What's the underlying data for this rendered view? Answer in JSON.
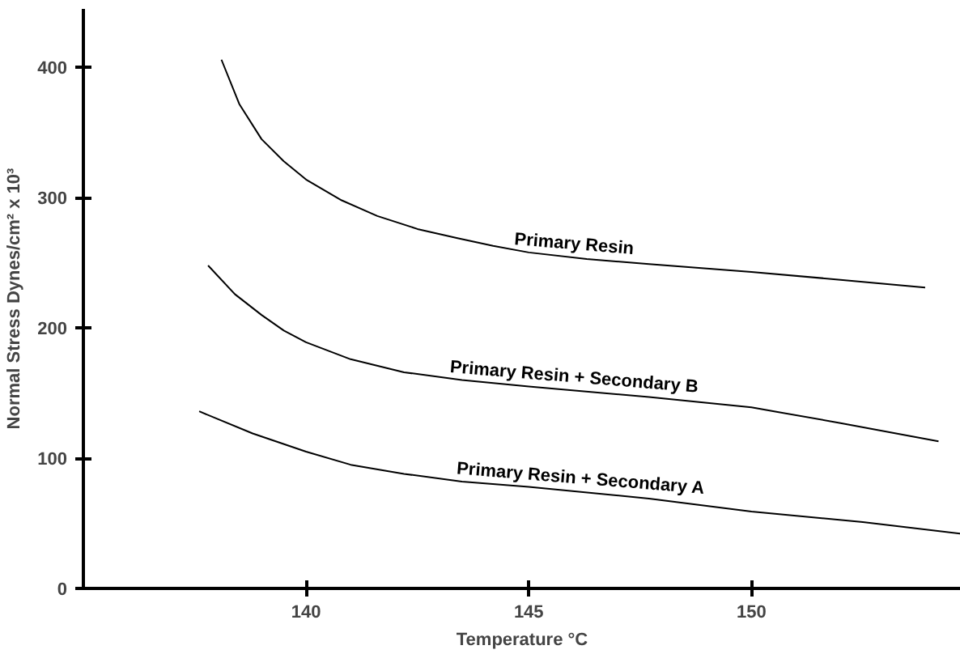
{
  "chart_data": {
    "type": "line",
    "xlabel": "Temperature °C",
    "ylabel": "Normal Stress Dynes/cm² x 10³",
    "xlim": [
      135,
      154.7
    ],
    "xticks": [
      140,
      145,
      150
    ],
    "ylim": [
      0,
      445
    ],
    "yticks": [
      0,
      100,
      200,
      300,
      400
    ],
    "grid": false,
    "marker": "none",
    "line_style": "solid",
    "series": [
      {
        "name": "Primary Resin",
        "color": "#000000",
        "x": [
          138.1,
          138.5,
          139.0,
          139.5,
          140,
          140.8,
          141.6,
          142.5,
          143.4,
          144.2,
          145,
          146.3,
          147.7,
          150,
          152,
          153.9
        ],
        "values": [
          406,
          372,
          345,
          328,
          314,
          298,
          286,
          276,
          269,
          263,
          258,
          253,
          249,
          243,
          237,
          231
        ]
      },
      {
        "name": "Primary Resin + Secondary B",
        "color": "#000000",
        "x": [
          137.8,
          138.4,
          139.0,
          139.5,
          140,
          141,
          142.2,
          143.5,
          145,
          147.7,
          150,
          152,
          154.2
        ],
        "values": [
          248,
          226,
          210,
          198,
          189,
          176,
          166,
          160,
          155,
          147,
          139,
          127,
          113
        ]
      },
      {
        "name": "Primary Resin + Secondary A",
        "color": "#000000",
        "x": [
          137.6,
          138.8,
          140,
          141,
          142.2,
          143.5,
          145,
          147.7,
          150,
          152.5,
          154.7
        ],
        "values": [
          136,
          119,
          105,
          95,
          88,
          82,
          78,
          69,
          59,
          51,
          42
        ]
      }
    ]
  }
}
